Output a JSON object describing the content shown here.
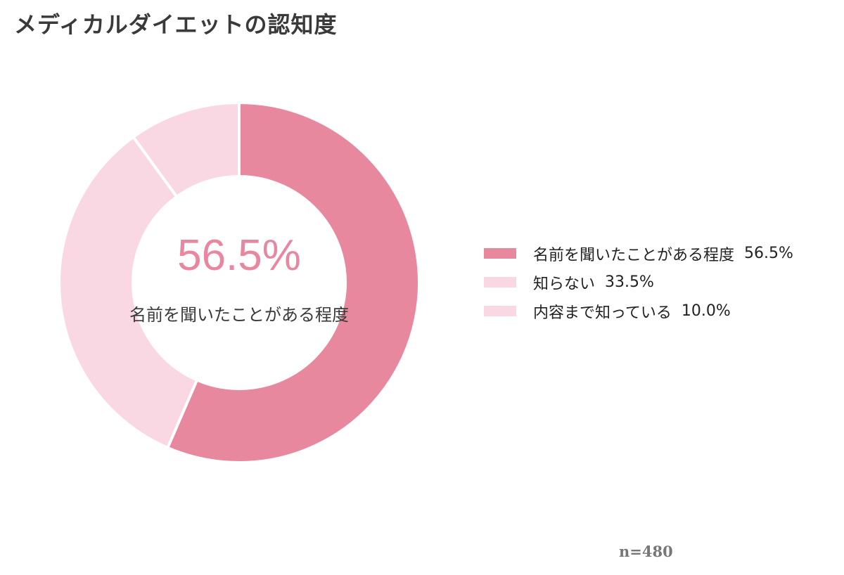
{
  "chart_data": {
    "type": "pie",
    "title": "メディカルダイエットの認知度",
    "categories": [
      "名前を聞いたことがある程度",
      "知らない",
      "内容まで知っている"
    ],
    "values": [
      56.5,
      33.5,
      10.0
    ],
    "value_labels": [
      "56.5%",
      "33.5%",
      "10.0%"
    ],
    "colors": [
      "#e8889f",
      "#f9d8e3",
      "#f9d8e3"
    ],
    "legend_position": "right",
    "center_value": "56.5%",
    "center_label": "名前を聞いたことがある程度",
    "sample_size": "n=480"
  }
}
